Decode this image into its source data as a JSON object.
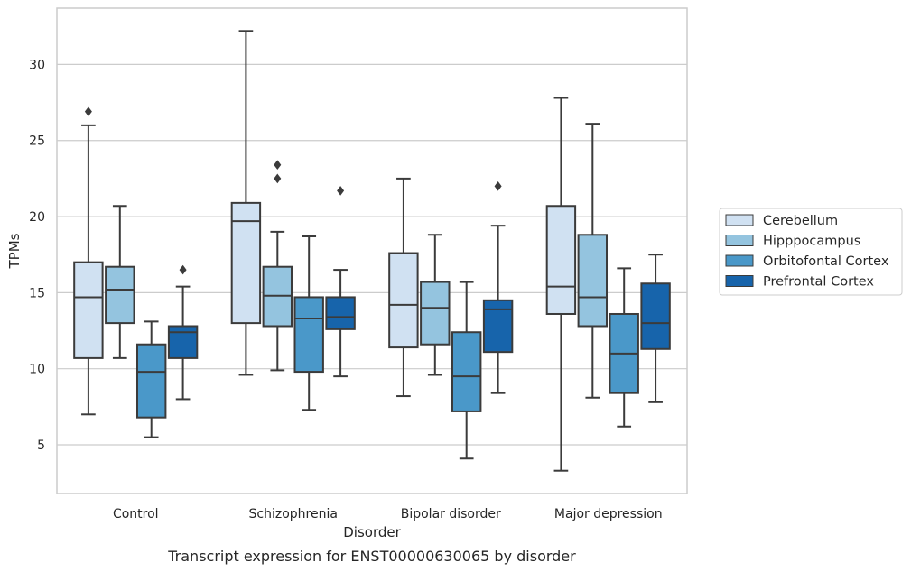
{
  "chart_data": {
    "type": "box",
    "caption": "Transcript expression for ENST00000630065 by disorder",
    "xlabel": "Disorder",
    "ylabel": "TPMs",
    "ylim": [
      1.8,
      33.7
    ],
    "yticks": [
      5,
      10,
      15,
      20,
      25,
      30
    ],
    "grid": true,
    "legend_position": "right",
    "categories": [
      "Control",
      "Schizophrenia",
      "Bipolar disorder",
      "Major depression"
    ],
    "series": [
      {
        "name": "Cerebellum",
        "color": "#d0e1f2",
        "boxes": [
          {
            "whislo": 7.0,
            "q1": 10.7,
            "med": 14.7,
            "q3": 17.0,
            "whishi": 26.0,
            "fliers": [
              26.9
            ]
          },
          {
            "whislo": 9.6,
            "q1": 13.0,
            "med": 19.7,
            "q3": 20.9,
            "whishi": 32.2,
            "fliers": []
          },
          {
            "whislo": 8.2,
            "q1": 11.4,
            "med": 14.2,
            "q3": 17.6,
            "whishi": 22.5,
            "fliers": []
          },
          {
            "whislo": 3.3,
            "q1": 13.6,
            "med": 15.4,
            "q3": 20.7,
            "whishi": 27.8,
            "fliers": []
          }
        ]
      },
      {
        "name": "Hipppocampus",
        "color": "#94c4df",
        "boxes": [
          {
            "whislo": 10.7,
            "q1": 13.0,
            "med": 15.2,
            "q3": 16.7,
            "whishi": 20.7,
            "fliers": []
          },
          {
            "whislo": 9.9,
            "q1": 12.8,
            "med": 14.8,
            "q3": 16.7,
            "whishi": 19.0,
            "fliers": [
              22.5,
              23.4
            ]
          },
          {
            "whislo": 9.6,
            "q1": 11.6,
            "med": 14.0,
            "q3": 15.7,
            "whishi": 18.8,
            "fliers": []
          },
          {
            "whislo": 8.1,
            "q1": 12.8,
            "med": 14.7,
            "q3": 18.8,
            "whishi": 26.1,
            "fliers": []
          }
        ]
      },
      {
        "name": "Orbitofontal Cortex",
        "color": "#4a98c9",
        "boxes": [
          {
            "whislo": 5.5,
            "q1": 6.8,
            "med": 9.8,
            "q3": 11.6,
            "whishi": 13.1,
            "fliers": []
          },
          {
            "whislo": 7.3,
            "q1": 9.8,
            "med": 13.3,
            "q3": 14.7,
            "whishi": 18.7,
            "fliers": []
          },
          {
            "whislo": 4.1,
            "q1": 7.2,
            "med": 9.5,
            "q3": 12.4,
            "whishi": 15.7,
            "fliers": []
          },
          {
            "whislo": 6.2,
            "q1": 8.4,
            "med": 11.0,
            "q3": 13.6,
            "whishi": 16.6,
            "fliers": []
          }
        ]
      },
      {
        "name": "Prefrontal Cortex",
        "color": "#1764ab",
        "boxes": [
          {
            "whislo": 8.0,
            "q1": 10.7,
            "med": 12.4,
            "q3": 12.8,
            "whishi": 15.4,
            "fliers": [
              16.5
            ]
          },
          {
            "whislo": 9.5,
            "q1": 12.6,
            "med": 13.4,
            "q3": 14.7,
            "whishi": 16.5,
            "fliers": [
              21.7
            ]
          },
          {
            "whislo": 8.4,
            "q1": 11.1,
            "med": 13.9,
            "q3": 14.5,
            "whishi": 19.4,
            "fliers": [
              22.0
            ]
          },
          {
            "whislo": 7.8,
            "q1": 11.3,
            "med": 13.0,
            "q3": 15.6,
            "whishi": 17.5,
            "fliers": []
          }
        ]
      }
    ]
  }
}
